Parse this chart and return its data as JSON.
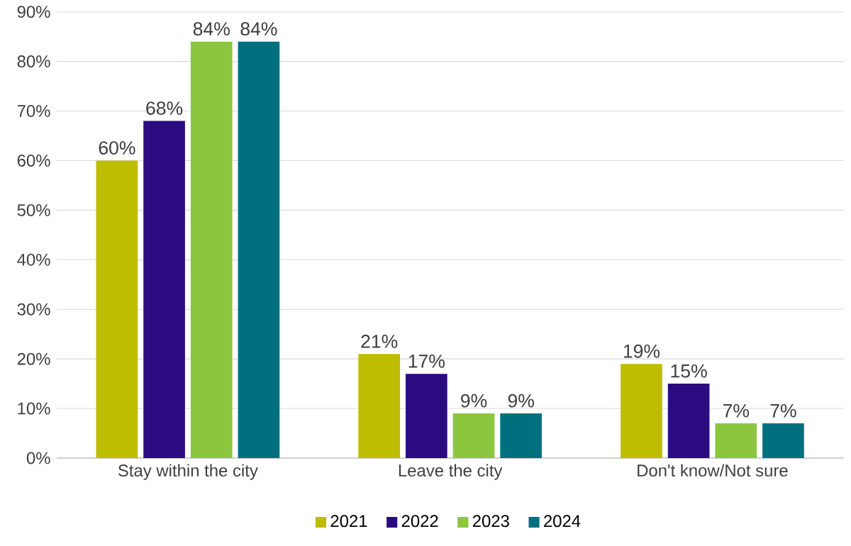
{
  "chart_data": {
    "type": "bar",
    "categories": [
      "Stay within the city",
      "Leave the city",
      "Don't know/Not sure"
    ],
    "series": [
      {
        "name": "2021",
        "color": "#bfbd00",
        "values": [
          60,
          21,
          19
        ],
        "value_labels": [
          "60%",
          "21%",
          "19%"
        ]
      },
      {
        "name": "2022",
        "color": "#2b0c80",
        "values": [
          68,
          17,
          15
        ],
        "value_labels": [
          "68%",
          "17%",
          "15%"
        ]
      },
      {
        "name": "2023",
        "color": "#8cc63e",
        "values": [
          84,
          9,
          7
        ],
        "value_labels": [
          "84%",
          "9%",
          "7%"
        ]
      },
      {
        "name": "2024",
        "color": "#00707f",
        "values": [
          84,
          9,
          7
        ],
        "value_labels": [
          "84%",
          "9%",
          "7%"
        ]
      }
    ],
    "ylim": [
      0,
      90
    ],
    "yticks": [
      {
        "value": 0,
        "label": "0%"
      },
      {
        "value": 10,
        "label": "10%"
      },
      {
        "value": 20,
        "label": "20%"
      },
      {
        "value": 30,
        "label": "30%"
      },
      {
        "value": 40,
        "label": "40%"
      },
      {
        "value": 50,
        "label": "50%"
      },
      {
        "value": 60,
        "label": "60%"
      },
      {
        "value": 70,
        "label": "70%"
      },
      {
        "value": 80,
        "label": "80%"
      },
      {
        "value": 90,
        "label": "90%"
      }
    ],
    "grid": "y",
    "legend": "bottom"
  }
}
